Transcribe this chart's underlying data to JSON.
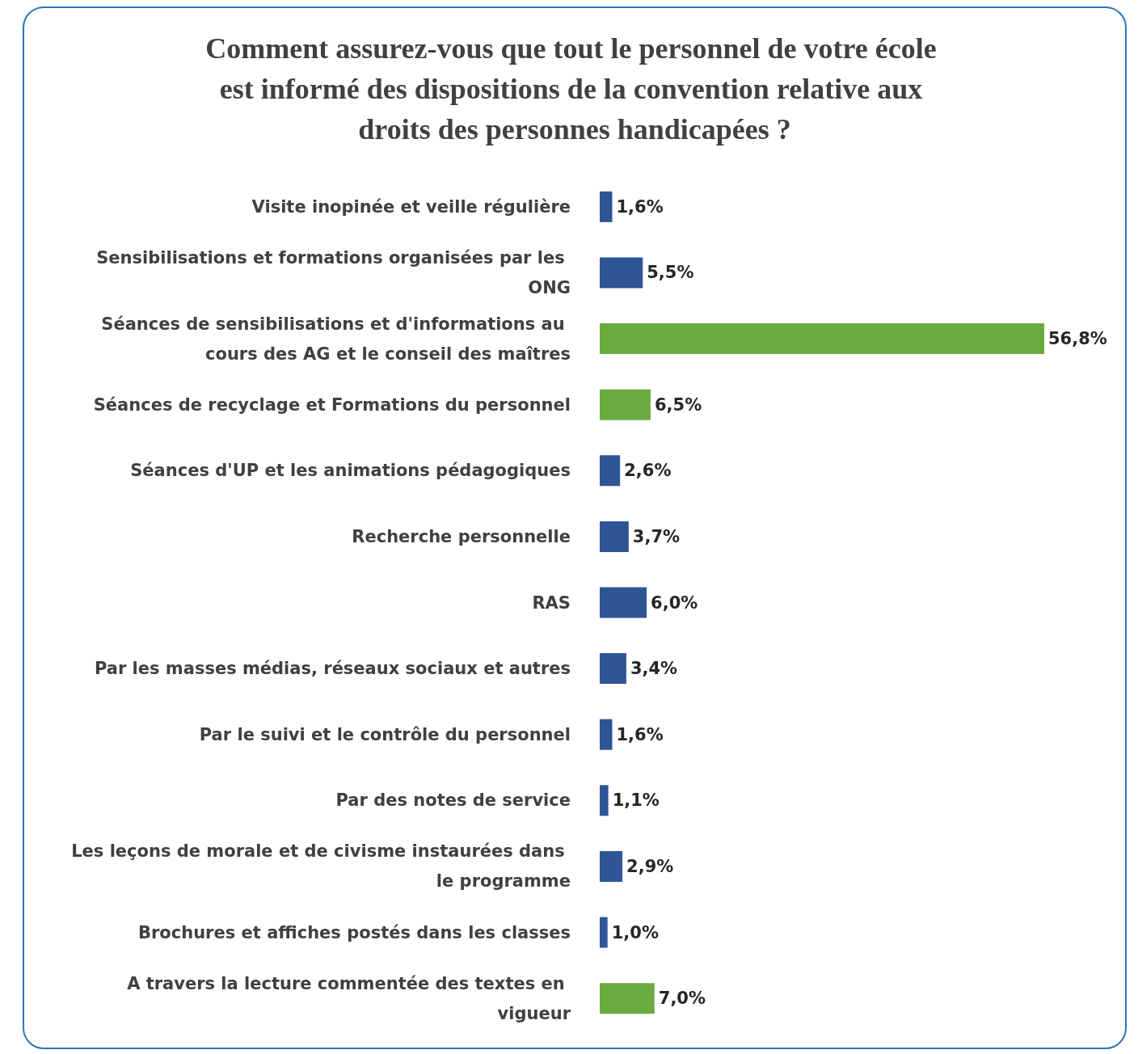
{
  "chart_data": {
    "type": "bar",
    "orientation": "horizontal",
    "title": "Comment assurez-vous que tout le personnel de votre école est informé des dispositions de la convention relative aux droits des personnes handicapées ?",
    "categories": [
      "Visite inopinée et veille régulière",
      "Sensibilisations et formations organisées par les ONG",
      "Séances de sensibilisations et d'informations au cours des AG et le conseil des maîtres",
      "Séances de recyclage et Formations du personnel",
      "Séances d'UP et les animations pédagogiques",
      "Recherche personnelle",
      "RAS",
      "Par les masses médias, réseaux sociaux et autres",
      "Par le suivi et le contrôle du personnel",
      "Par des notes de service",
      "Les leçons de morale et de civisme instaurées dans le programme",
      "Brochures et affiches postés dans les classes",
      "A travers la lecture commentée des textes en vigueur"
    ],
    "values": [
      1.6,
      5.5,
      56.8,
      6.5,
      2.6,
      3.7,
      6.0,
      3.4,
      1.6,
      1.1,
      2.9,
      1.0,
      7.0
    ],
    "value_labels": [
      "1,6%",
      "5,5%",
      "56,8%",
      "6,5%",
      "2,6%",
      "3,7%",
      "6,0%",
      "3,4%",
      "1,6%",
      "1,1%",
      "2,9%",
      "1,0%",
      "7,0%"
    ],
    "colors": [
      "#2f5597",
      "#2f5597",
      "#6aab3f",
      "#6aab3f",
      "#2f5597",
      "#2f5597",
      "#2f5597",
      "#2f5597",
      "#2f5597",
      "#2f5597",
      "#2f5597",
      "#2f5597",
      "#6aab3f"
    ],
    "grid": false,
    "legend": false
  }
}
